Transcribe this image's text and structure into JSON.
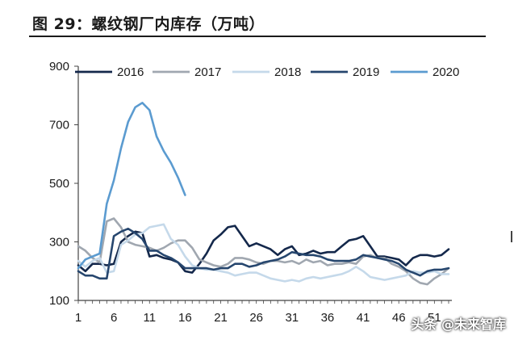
{
  "header": {
    "title": "图 29：螺纹钢厂内库存（万吨）"
  },
  "watermark": "头条 @未来智库",
  "chart_data": {
    "type": "line",
    "title": "",
    "xlabel": "",
    "ylabel": "",
    "xlim": [
      1,
      53
    ],
    "ylim": [
      100,
      900
    ],
    "yticks": [
      100,
      300,
      500,
      700,
      900
    ],
    "xticks": [
      1,
      6,
      11,
      16,
      21,
      26,
      31,
      36,
      41,
      46,
      51
    ],
    "grid": false,
    "legend_position": "top",
    "series": [
      {
        "name": "2016",
        "color": "#14284b",
        "values": [
          220,
          200,
          225,
          225,
          220,
          225,
          300,
          320,
          335,
          330,
          250,
          255,
          245,
          240,
          230,
          200,
          195,
          225,
          260,
          305,
          325,
          350,
          355,
          320,
          285,
          295,
          285,
          275,
          255,
          275,
          285,
          255,
          260,
          270,
          260,
          265,
          265,
          285,
          305,
          310,
          320,
          285,
          250,
          250,
          245,
          240,
          220,
          245,
          255,
          255,
          250,
          255,
          275
        ]
      },
      {
        "name": "2017",
        "color": "#a0a7b0",
        "values": [
          285,
          270,
          245,
          230,
          370,
          380,
          350,
          300,
          290,
          285,
          280,
          270,
          280,
          295,
          305,
          305,
          280,
          240,
          230,
          220,
          215,
          225,
          245,
          245,
          240,
          230,
          225,
          235,
          235,
          230,
          235,
          225,
          240,
          230,
          235,
          220,
          225,
          225,
          230,
          225,
          250,
          255,
          245,
          245,
          225,
          215,
          200,
          175,
          160,
          155,
          175,
          190,
          210
        ]
      },
      {
        "name": "2018",
        "color": "#c5d9ea",
        "values": [
          235,
          215,
          235,
          245,
          195,
          200,
          290,
          305,
          325,
          330,
          350,
          355,
          360,
          310,
          290,
          250,
          220,
          210,
          205,
          205,
          200,
          195,
          185,
          190,
          195,
          195,
          185,
          175,
          170,
          165,
          170,
          165,
          175,
          180,
          175,
          180,
          185,
          190,
          200,
          215,
          200,
          180,
          175,
          170,
          175,
          180,
          185,
          200,
          195,
          195,
          200,
          190,
          190
        ]
      },
      {
        "name": "2019",
        "color": "#26466e",
        "values": [
          200,
          185,
          185,
          175,
          175,
          320,
          335,
          345,
          330,
          310,
          270,
          270,
          255,
          245,
          230,
          210,
          210,
          210,
          210,
          205,
          210,
          210,
          225,
          225,
          215,
          220,
          230,
          235,
          240,
          250,
          265,
          260,
          255,
          255,
          250,
          240,
          235,
          235,
          235,
          240,
          255,
          250,
          245,
          240,
          235,
          225,
          205,
          195,
          185,
          200,
          205,
          205,
          210
        ]
      },
      {
        "name": "2020",
        "color": "#5b9bd0",
        "values": [
          210,
          240,
          250,
          260,
          430,
          510,
          620,
          710,
          760,
          775,
          750,
          660,
          610,
          570,
          520,
          460
        ]
      }
    ]
  }
}
